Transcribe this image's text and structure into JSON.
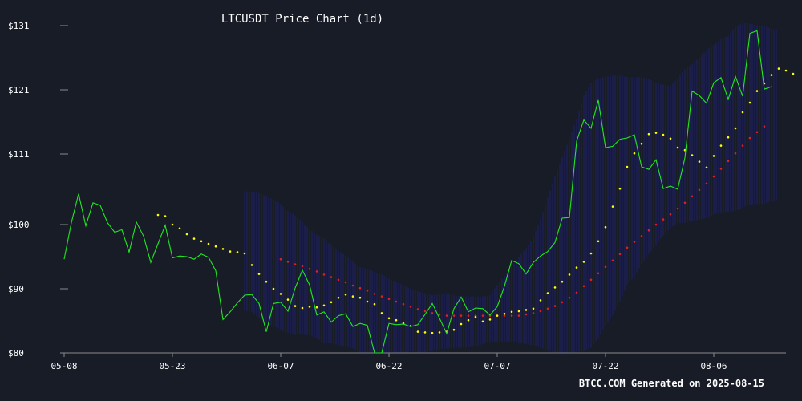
{
  "chart_data": {
    "type": "line",
    "title": "LTCUSDT Price Chart (1d)",
    "footer": "BTCC.COM Generated on 2025-08-15",
    "xlabel": "",
    "ylabel": "",
    "x_start": "2025-05-08",
    "x_ticks": [
      "05-08",
      "05-23",
      "06-07",
      "06-22",
      "07-07",
      "07-22",
      "08-06"
    ],
    "y_ticks": [
      {
        "value": 80,
        "label": "$80"
      },
      {
        "value": 90,
        "label": "$90"
      },
      {
        "value": 100,
        "label": "$100"
      },
      {
        "value": 111,
        "label": "$111"
      },
      {
        "value": 121,
        "label": "$121"
      },
      {
        "value": 131,
        "label": "$131"
      }
    ],
    "ylim": [
      80,
      131
    ],
    "grid": false,
    "colors": {
      "background": "#181c27",
      "price": "#22e822",
      "sar": "#ffff00",
      "ma": "#dd2020",
      "band": "#2626a8",
      "axis": "#8a8a8a",
      "text": "#ffffff"
    },
    "series": [
      {
        "role": "price",
        "color": "#22e822",
        "values": [
          94.6,
          100.3,
          104.8,
          99.8,
          103.4,
          103.0,
          100.3,
          98.8,
          99.2,
          95.7,
          100.4,
          98.2,
          94.1,
          97.0,
          99.9,
          94.8,
          95.1,
          95.0,
          94.6,
          95.4,
          94.9,
          92.8,
          85.2,
          86.4,
          87.8,
          89.0,
          89.1,
          87.7,
          83.3,
          87.7,
          87.9,
          86.5,
          90.1,
          92.9,
          90.6,
          85.9,
          86.4,
          84.8,
          85.8,
          86.1,
          84.1,
          84.6,
          84.3,
          80.0,
          80.0,
          84.6,
          84.4,
          84.5,
          84.1,
          84.4,
          86.0,
          87.7,
          85.4,
          83.0,
          86.9,
          88.7,
          86.4,
          87.0,
          86.9,
          85.9,
          87.2,
          90.4,
          94.4,
          93.9,
          92.3,
          94.1,
          95.1,
          95.8,
          97.2,
          101.0,
          101.1,
          113.0,
          116.3,
          115.0,
          119.4,
          112.0,
          112.2,
          113.3,
          113.5,
          114.0,
          109.0,
          108.6,
          110.1,
          105.6,
          106.0,
          105.5,
          110.4,
          120.8,
          120.1,
          118.9,
          122.1,
          122.9,
          119.5,
          123.1,
          120.0,
          129.8,
          130.2,
          121.1,
          121.5
        ]
      },
      {
        "role": "sar",
        "color": "#ffff00",
        "start_index": 13,
        "values": [
          101.5,
          101.3,
          100.0,
          99.4,
          98.5,
          97.8,
          97.4,
          97.0,
          96.6,
          96.2,
          95.8,
          95.7,
          95.5,
          93.7,
          92.3,
          91.1,
          90.0,
          89.2,
          88.3,
          87.3,
          87.0,
          87.2,
          87.1,
          87.4,
          87.9,
          88.6,
          89.1,
          88.8,
          88.6,
          88.0,
          87.6,
          86.2,
          85.4,
          85.1,
          84.6,
          84.2,
          83.3,
          83.2,
          83.1,
          83.2,
          83.3,
          83.6,
          84.5,
          85.1,
          85.6,
          84.9,
          85.2,
          85.8,
          86.1,
          86.4,
          86.5,
          86.7,
          86.9,
          88.2,
          89.3,
          90.2,
          91.1,
          92.2,
          93.3,
          94.2,
          95.5,
          97.4,
          99.6,
          102.8,
          105.6,
          109.0,
          111.1,
          112.6,
          114.1,
          114.3,
          114.0,
          113.4,
          112.0,
          111.6,
          110.8,
          109.8,
          108.9,
          110.7,
          112.3,
          113.6,
          115.0,
          117.5,
          119.0,
          120.8,
          122.0,
          123.3,
          124.3,
          124.0,
          123.5
        ]
      },
      {
        "role": "ma",
        "color": "#dd2020",
        "start_index": 30,
        "values": [
          94.6,
          94.2,
          93.8,
          93.5,
          93.1,
          92.7,
          92.2,
          91.8,
          91.4,
          91.0,
          90.5,
          90.1,
          89.7,
          89.2,
          88.8,
          88.4,
          88.0,
          87.6,
          87.2,
          86.8,
          86.5,
          86.2,
          86.0,
          85.8,
          85.8,
          85.8,
          85.8,
          85.8,
          85.8,
          85.8,
          85.8,
          85.8,
          85.8,
          85.8,
          86.0,
          86.2,
          86.5,
          86.9,
          87.3,
          87.9,
          88.6,
          89.4,
          90.4,
          91.4,
          92.4,
          93.4,
          94.4,
          95.4,
          96.4,
          97.3,
          98.2,
          99.1,
          100.0,
          100.8,
          101.6,
          102.5,
          103.4,
          104.4,
          105.4,
          106.4,
          107.5,
          108.7,
          109.9,
          111.1,
          112.3,
          113.5,
          114.4,
          115.3
        ]
      },
      {
        "role": "band_upper",
        "color": "#2626a8",
        "start_index": 25,
        "values": [
          105.2,
          105.1,
          104.9,
          104.4,
          103.9,
          103.2,
          102.1,
          101.4,
          100.4,
          99.3,
          98.4,
          97.8,
          96.8,
          95.9,
          95.2,
          94.2,
          93.4,
          93.1,
          92.6,
          92.2,
          91.5,
          91.1,
          90.5,
          90.0,
          89.6,
          89.3,
          89.0,
          89.1,
          89.2,
          89.0,
          88.8,
          88.8,
          88.8,
          88.8,
          89.0,
          90.6,
          92.0,
          93.4,
          95.0,
          96.3,
          98.1,
          100.8,
          104.2,
          107.5,
          110.5,
          113.4,
          116.4,
          120.1,
          122.1,
          122.8,
          123.0,
          123.2,
          123.2,
          123.0,
          122.9,
          123.0,
          122.7,
          122.1,
          121.8,
          121.6,
          122.8,
          124.2,
          125.0,
          126.0,
          127.2,
          128.0,
          128.9,
          129.4,
          130.8,
          131.4,
          131.3,
          131.1,
          130.9,
          130.5,
          130.3
        ]
      },
      {
        "role": "band_lower",
        "color": "#2626a8",
        "start_index": 25,
        "values": [
          86.6,
          86.4,
          85.4,
          84.6,
          84.2,
          83.6,
          83.1,
          82.8,
          82.9,
          82.7,
          82.3,
          81.5,
          81.5,
          81.2,
          81.0,
          80.7,
          80.0,
          79.9,
          79.8,
          79.8,
          79.7,
          79.8,
          80.0,
          80.3,
          80.1,
          80.1,
          80.3,
          80.6,
          80.7,
          80.8,
          80.8,
          80.9,
          81.0,
          81.4,
          81.8,
          81.7,
          81.8,
          81.8,
          81.5,
          81.4,
          81.2,
          80.8,
          80.4,
          80.1,
          80.0,
          80.0,
          80.2,
          80.3,
          80.8,
          82.4,
          84.1,
          85.9,
          88.0,
          90.6,
          91.9,
          93.9,
          95.4,
          96.8,
          98.3,
          99.5,
          100.2,
          100.3,
          100.6,
          100.8,
          101.0,
          101.6,
          101.9,
          102.0,
          102.1,
          102.7,
          103.1,
          103.2,
          103.3,
          103.7,
          103.9
        ]
      }
    ]
  }
}
